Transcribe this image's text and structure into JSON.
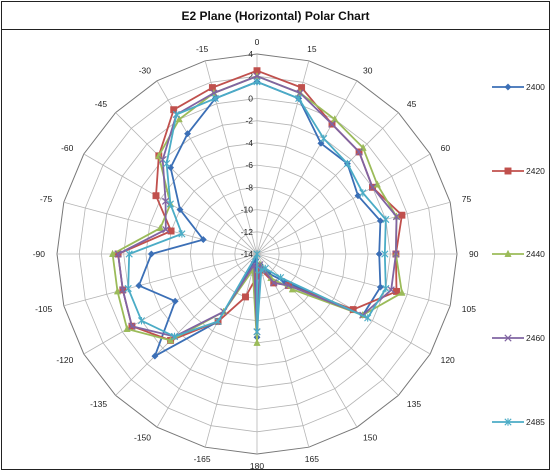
{
  "chart_data": {
    "type": "polar-line",
    "title": "E2 Plane (Horizontal) Polar Chart",
    "angles": [
      0,
      15,
      30,
      45,
      60,
      75,
      90,
      105,
      120,
      135,
      150,
      165,
      180,
      -165,
      -150,
      -135,
      -120,
      -105,
      -90,
      -75,
      -60,
      -45,
      -30,
      -15
    ],
    "angle_labels": [
      "0",
      "15",
      "30",
      "45",
      "60",
      "75",
      "90",
      "105",
      "120",
      "135",
      "150",
      "165",
      "180",
      "-165",
      "-150",
      "-135",
      "-120",
      "-105",
      "-90",
      "-75",
      "-60",
      "-45",
      "-30",
      "-15"
    ],
    "r_ticks": [
      4,
      2,
      0,
      -2,
      -4,
      -6,
      -8,
      -10,
      -12,
      -14
    ],
    "rlim": [
      -14,
      4
    ],
    "grid": true,
    "legend_position": "right",
    "series": [
      {
        "name": "2400",
        "color": "#3b6fb6",
        "marker": "diamond",
        "values": [
          1.5,
          0.5,
          -2.5,
          -2.5,
          -3.5,
          -2.5,
          -3.0,
          -2.5,
          -3.0,
          -10.5,
          -12.0,
          -13.0,
          -6.5,
          -13.5,
          -7.0,
          -1.0,
          -5.5,
          -3.0,
          -4.5,
          -9.0,
          -6.0,
          -3.0,
          -1.5,
          0.5
        ]
      },
      {
        "name": "2420",
        "color": "#c0504d",
        "marker": "square",
        "values": [
          2.5,
          1.5,
          -0.5,
          -1.0,
          -2.0,
          -0.5,
          -1.5,
          -1.0,
          -4.0,
          -10.0,
          -11.0,
          -12.5,
          -12.0,
          -10.0,
          -7.0,
          -3.0,
          -1.0,
          -1.5,
          -1.5,
          -6.0,
          -3.5,
          -1.5,
          1.0,
          1.5
        ]
      },
      {
        "name": "2440",
        "color": "#9bbb59",
        "marker": "triangle",
        "values": [
          2.0,
          1.0,
          0.0,
          -0.5,
          -1.5,
          -1.0,
          -1.5,
          -0.5,
          -3.0,
          -9.5,
          -11.5,
          -13.0,
          -6.0,
          -12.5,
          -8.0,
          -3.0,
          -0.5,
          -1.0,
          -1.0,
          -5.0,
          -5.0,
          -1.5,
          0.0,
          1.0
        ]
      },
      {
        "name": "2460",
        "color": "#8064a2",
        "marker": "x",
        "values": [
          2.0,
          1.0,
          -0.5,
          -1.0,
          -2.0,
          -1.0,
          -1.5,
          -1.5,
          -3.0,
          -10.0,
          -11.0,
          -13.0,
          -7.0,
          -13.0,
          -8.0,
          -3.5,
          -1.0,
          -1.5,
          -1.5,
          -5.5,
          -4.5,
          -2.0,
          0.5,
          1.0
        ]
      },
      {
        "name": "2485",
        "color": "#4bacc6",
        "marker": "star",
        "values": [
          1.5,
          0.5,
          -2.0,
          -2.5,
          -3.0,
          -2.0,
          -2.5,
          -2.0,
          -2.5,
          -11.0,
          -12.5,
          -12.5,
          -7.0,
          -14.0,
          -7.0,
          -3.5,
          -2.0,
          -2.0,
          -2.5,
          -7.0,
          -5.0,
          -2.5,
          0.5,
          0.5
        ]
      }
    ]
  }
}
